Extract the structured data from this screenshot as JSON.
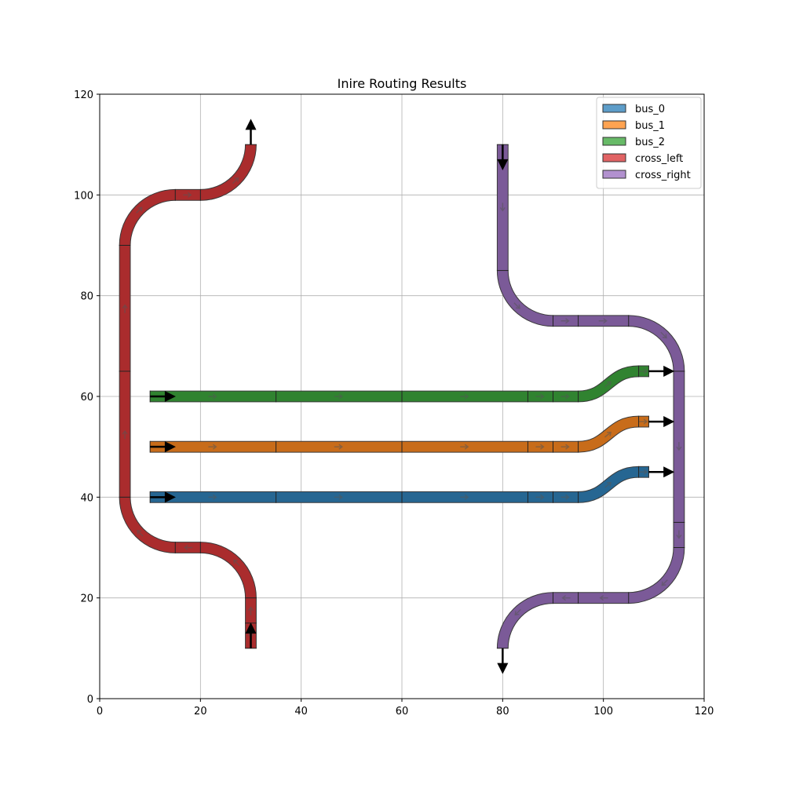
{
  "chart_data": {
    "type": "route-plot",
    "title": "Inire Routing Results",
    "xlabel": "",
    "ylabel": "",
    "xlim": [
      0,
      120
    ],
    "ylim": [
      0,
      120
    ],
    "x_ticks": [
      0,
      20,
      40,
      60,
      80,
      100,
      120
    ],
    "y_ticks": [
      0,
      20,
      40,
      60,
      80,
      100,
      120
    ],
    "grid": true,
    "legend_position": "top-right",
    "waveguide_width": 2,
    "series": [
      {
        "name": "bus_0",
        "color": "#1f77b4",
        "segments": [
          {
            "kind": "line",
            "from": [
              10,
              40
            ],
            "to": [
              35,
              40
            ]
          },
          {
            "kind": "line",
            "from": [
              35,
              40
            ],
            "to": [
              60,
              40
            ]
          },
          {
            "kind": "line",
            "from": [
              60,
              40
            ],
            "to": [
              85,
              40
            ]
          },
          {
            "kind": "line",
            "from": [
              85,
              40
            ],
            "to": [
              90,
              40
            ]
          },
          {
            "kind": "line",
            "from": [
              90,
              40
            ],
            "to": [
              95,
              40
            ]
          },
          {
            "kind": "sbend",
            "from": [
              95,
              40
            ],
            "to": [
              107,
              45
            ]
          },
          {
            "kind": "line",
            "from": [
              107,
              45
            ],
            "to": [
              109,
              45
            ]
          }
        ],
        "arrows": [
          {
            "at": [
              10,
              40
            ],
            "dir": "right"
          },
          {
            "at": [
              109,
              45
            ],
            "dir": "right"
          }
        ]
      },
      {
        "name": "bus_1",
        "color": "#ff7f0e",
        "segments": [
          {
            "kind": "line",
            "from": [
              10,
              50
            ],
            "to": [
              35,
              50
            ]
          },
          {
            "kind": "line",
            "from": [
              35,
              50
            ],
            "to": [
              60,
              50
            ]
          },
          {
            "kind": "line",
            "from": [
              60,
              50
            ],
            "to": [
              85,
              50
            ]
          },
          {
            "kind": "line",
            "from": [
              85,
              50
            ],
            "to": [
              90,
              50
            ]
          },
          {
            "kind": "line",
            "from": [
              90,
              50
            ],
            "to": [
              95,
              50
            ]
          },
          {
            "kind": "sbend",
            "from": [
              95,
              50
            ],
            "to": [
              107,
              55
            ]
          },
          {
            "kind": "line",
            "from": [
              107,
              55
            ],
            "to": [
              109,
              55
            ]
          }
        ],
        "arrows": [
          {
            "at": [
              10,
              50
            ],
            "dir": "right"
          },
          {
            "at": [
              109,
              55
            ],
            "dir": "right"
          }
        ]
      },
      {
        "name": "bus_2",
        "color": "#2ca02c",
        "segments": [
          {
            "kind": "line",
            "from": [
              10,
              60
            ],
            "to": [
              35,
              60
            ]
          },
          {
            "kind": "line",
            "from": [
              35,
              60
            ],
            "to": [
              60,
              60
            ]
          },
          {
            "kind": "line",
            "from": [
              60,
              60
            ],
            "to": [
              85,
              60
            ]
          },
          {
            "kind": "line",
            "from": [
              85,
              60
            ],
            "to": [
              90,
              60
            ]
          },
          {
            "kind": "line",
            "from": [
              90,
              60
            ],
            "to": [
              95,
              60
            ]
          },
          {
            "kind": "sbend",
            "from": [
              95,
              60
            ],
            "to": [
              107,
              65
            ]
          },
          {
            "kind": "line",
            "from": [
              107,
              65
            ],
            "to": [
              109,
              65
            ]
          }
        ],
        "arrows": [
          {
            "at": [
              10,
              60
            ],
            "dir": "right"
          },
          {
            "at": [
              109,
              65
            ],
            "dir": "right"
          }
        ]
      },
      {
        "name": "cross_left",
        "color": "#d62728",
        "segments": [
          {
            "kind": "line",
            "from": [
              30,
              10
            ],
            "to": [
              30,
              15
            ]
          },
          {
            "kind": "line",
            "from": [
              30,
              15
            ],
            "to": [
              30,
              20
            ]
          },
          {
            "kind": "arc",
            "from": [
              30,
              20
            ],
            "to": [
              20,
              30
            ],
            "center": [
              20,
              20
            ],
            "sweep": "ccw"
          },
          {
            "kind": "line",
            "from": [
              20,
              30
            ],
            "to": [
              15,
              30
            ]
          },
          {
            "kind": "arc",
            "from": [
              15,
              30
            ],
            "to": [
              5,
              40
            ],
            "center": [
              15,
              40
            ],
            "sweep": "cw"
          },
          {
            "kind": "line",
            "from": [
              5,
              40
            ],
            "to": [
              5,
              65
            ]
          },
          {
            "kind": "line",
            "from": [
              5,
              65
            ],
            "to": [
              5,
              90
            ]
          },
          {
            "kind": "arc",
            "from": [
              5,
              90
            ],
            "to": [
              15,
              100
            ],
            "center": [
              15,
              90
            ],
            "sweep": "cw"
          },
          {
            "kind": "line",
            "from": [
              15,
              100
            ],
            "to": [
              20,
              100
            ]
          },
          {
            "kind": "arc",
            "from": [
              20,
              100
            ],
            "to": [
              30,
              110
            ],
            "center": [
              20,
              110
            ],
            "sweep": "ccw"
          }
        ],
        "arrows": [
          {
            "at": [
              30,
              10
            ],
            "dir": "up"
          },
          {
            "at": [
              30,
              110
            ],
            "dir": "up"
          }
        ]
      },
      {
        "name": "cross_right",
        "color": "#9467bd",
        "segments": [
          {
            "kind": "line",
            "from": [
              80,
              110
            ],
            "to": [
              80,
              85
            ]
          },
          {
            "kind": "arc",
            "from": [
              80,
              85
            ],
            "to": [
              90,
              75
            ],
            "center": [
              90,
              85
            ],
            "sweep": "ccw"
          },
          {
            "kind": "line",
            "from": [
              90,
              75
            ],
            "to": [
              95,
              75
            ]
          },
          {
            "kind": "line",
            "from": [
              95,
              75
            ],
            "to": [
              105,
              75
            ]
          },
          {
            "kind": "arc",
            "from": [
              105,
              75
            ],
            "to": [
              115,
              65
            ],
            "center": [
              105,
              65
            ],
            "sweep": "cw"
          },
          {
            "kind": "line",
            "from": [
              115,
              65
            ],
            "to": [
              115,
              35
            ]
          },
          {
            "kind": "line",
            "from": [
              115,
              35
            ],
            "to": [
              115,
              30
            ]
          },
          {
            "kind": "arc",
            "from": [
              115,
              30
            ],
            "to": [
              105,
              20
            ],
            "center": [
              105,
              30
            ],
            "sweep": "cw"
          },
          {
            "kind": "line",
            "from": [
              105,
              20
            ],
            "to": [
              95,
              20
            ]
          },
          {
            "kind": "line",
            "from": [
              95,
              20
            ],
            "to": [
              90,
              20
            ]
          },
          {
            "kind": "arc",
            "from": [
              90,
              20
            ],
            "to": [
              80,
              10
            ],
            "center": [
              90,
              10
            ],
            "sweep": "ccw"
          }
        ],
        "arrows": [
          {
            "at": [
              80,
              110
            ],
            "dir": "down"
          },
          {
            "at": [
              80,
              10
            ],
            "dir": "down"
          }
        ]
      }
    ]
  }
}
